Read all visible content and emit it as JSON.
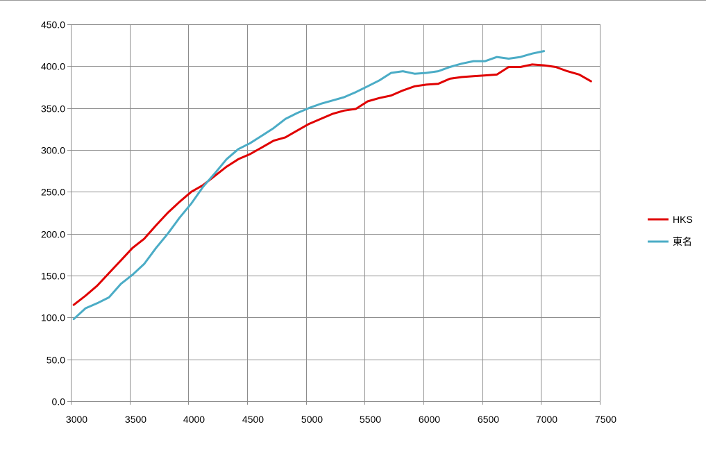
{
  "chart_data": {
    "type": "line",
    "title": "",
    "xlabel": "",
    "ylabel": "",
    "xlim": [
      3000,
      7500
    ],
    "ylim": [
      0,
      450
    ],
    "x_ticks": [
      "3000",
      "3500",
      "4000",
      "4500",
      "5000",
      "5500",
      "6000",
      "6500",
      "7000",
      "7500"
    ],
    "y_ticks": [
      "0.0",
      "50.0",
      "100.0",
      "150.0",
      "200.0",
      "250.0",
      "300.0",
      "350.0",
      "400.0",
      "450.0"
    ],
    "x_tick_values": [
      3000,
      3500,
      4000,
      4500,
      5000,
      5500,
      6000,
      6500,
      7000,
      7500
    ],
    "y_tick_values": [
      0,
      50,
      100,
      150,
      200,
      250,
      300,
      350,
      400,
      450
    ],
    "grid": true,
    "legend": "right",
    "series": [
      {
        "name": "HKS",
        "color": "#e00000",
        "points": [
          [
            3025,
            115
          ],
          [
            3125,
            126
          ],
          [
            3225,
            138
          ],
          [
            3325,
            153
          ],
          [
            3425,
            168
          ],
          [
            3525,
            183
          ],
          [
            3625,
            194
          ],
          [
            3725,
            210
          ],
          [
            3825,
            225
          ],
          [
            3925,
            238
          ],
          [
            4025,
            250
          ],
          [
            4125,
            258
          ],
          [
            4225,
            269
          ],
          [
            4325,
            280
          ],
          [
            4425,
            289
          ],
          [
            4525,
            295
          ],
          [
            4625,
            303
          ],
          [
            4725,
            311
          ],
          [
            4825,
            315
          ],
          [
            4925,
            323
          ],
          [
            5025,
            331
          ],
          [
            5125,
            337
          ],
          [
            5225,
            343
          ],
          [
            5325,
            347
          ],
          [
            5425,
            349
          ],
          [
            5525,
            358
          ],
          [
            5625,
            362
          ],
          [
            5725,
            365
          ],
          [
            5825,
            371
          ],
          [
            5925,
            376
          ],
          [
            6025,
            378
          ],
          [
            6125,
            379
          ],
          [
            6225,
            385
          ],
          [
            6325,
            387
          ],
          [
            6425,
            388
          ],
          [
            6525,
            389
          ],
          [
            6625,
            390
          ],
          [
            6725,
            399
          ],
          [
            6825,
            399
          ],
          [
            6925,
            402
          ],
          [
            7025,
            401
          ],
          [
            7125,
            399
          ],
          [
            7225,
            394
          ],
          [
            7325,
            390
          ],
          [
            7425,
            382
          ]
        ]
      },
      {
        "name": "東名",
        "color": "#4bacc6",
        "points": [
          [
            3025,
            98
          ],
          [
            3125,
            111
          ],
          [
            3225,
            117
          ],
          [
            3325,
            124
          ],
          [
            3425,
            140
          ],
          [
            3525,
            151
          ],
          [
            3625,
            164
          ],
          [
            3725,
            183
          ],
          [
            3825,
            200
          ],
          [
            3925,
            219
          ],
          [
            4025,
            236
          ],
          [
            4125,
            256
          ],
          [
            4225,
            272
          ],
          [
            4325,
            289
          ],
          [
            4425,
            301
          ],
          [
            4525,
            308
          ],
          [
            4625,
            317
          ],
          [
            4725,
            326
          ],
          [
            4825,
            337
          ],
          [
            4925,
            344
          ],
          [
            5025,
            350
          ],
          [
            5125,
            355
          ],
          [
            5225,
            359
          ],
          [
            5325,
            363
          ],
          [
            5425,
            369
          ],
          [
            5525,
            376
          ],
          [
            5625,
            383
          ],
          [
            5725,
            392
          ],
          [
            5825,
            394
          ],
          [
            5925,
            391
          ],
          [
            6025,
            392
          ],
          [
            6125,
            394
          ],
          [
            6225,
            399
          ],
          [
            6325,
            403
          ],
          [
            6425,
            406
          ],
          [
            6525,
            406
          ],
          [
            6625,
            411
          ],
          [
            6725,
            409
          ],
          [
            6825,
            411
          ],
          [
            6925,
            415
          ],
          [
            7025,
            418
          ]
        ]
      }
    ]
  }
}
